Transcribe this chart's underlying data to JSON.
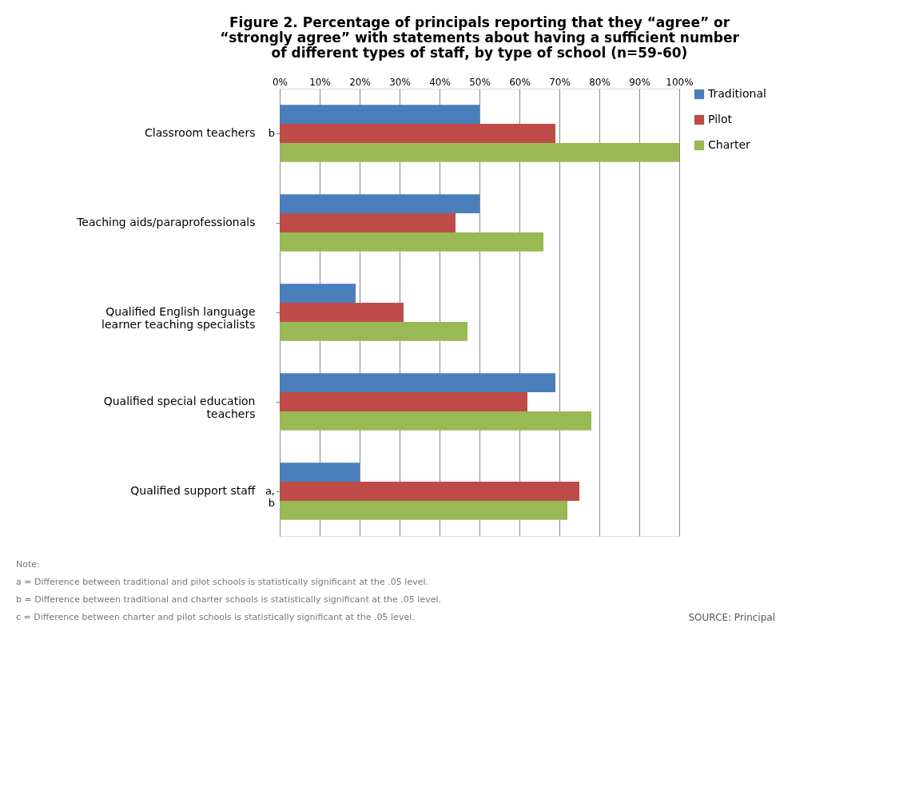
{
  "chart_data": {
    "type": "bar",
    "orientation": "horizontal",
    "title": "Figure 2. Percentage of principals reporting that they “agree” or “strongly agree” with statements about having a sufficient number of different types of staff, by type of school (n=59-60)",
    "categories": [
      "Classroom teachers",
      "Teaching aids/paraprofessionals",
      "Qualified English language learner teaching specialists",
      "Qualified special education teachers",
      "Qualified support staff"
    ],
    "series": [
      {
        "name": "Traditional",
        "color": "#4a7ebb",
        "values": [
          50,
          50,
          19,
          69,
          20
        ]
      },
      {
        "name": "Pilot",
        "color": "#be4b48",
        "values": [
          69,
          44,
          31,
          62,
          75
        ]
      },
      {
        "name": "Charter",
        "color": "#98b954",
        "values": [
          100,
          66,
          47,
          78,
          72
        ]
      }
    ],
    "xlim": [
      0,
      100
    ],
    "xticks": [
      {
        "value": 0,
        "label": "0%"
      },
      {
        "value": 10,
        "label": "10%"
      },
      {
        "value": 20,
        "label": "20%"
      },
      {
        "value": 30,
        "label": "30%"
      },
      {
        "value": 40,
        "label": "40%"
      },
      {
        "value": 50,
        "label": "50%"
      },
      {
        "value": 60,
        "label": "60%"
      },
      {
        "value": 70,
        "label": "70%"
      },
      {
        "value": 80,
        "label": "80%"
      },
      {
        "value": 90,
        "label": "90%"
      },
      {
        "value": 100,
        "label": "100%"
      }
    ],
    "grid": "x",
    "legend": "right",
    "annotations": [
      "b",
      "a, b",
      "Note:",
      "a = Difference between traditional and pilot schools is statistically significant at the .05 level.",
      "b = Difference between traditional and charter schools is statistically significant at the .05 level.",
      "c = Difference between charter and pilot schools is statistically significant at the .05 level.",
      "SOURCE: Principal"
    ]
  }
}
